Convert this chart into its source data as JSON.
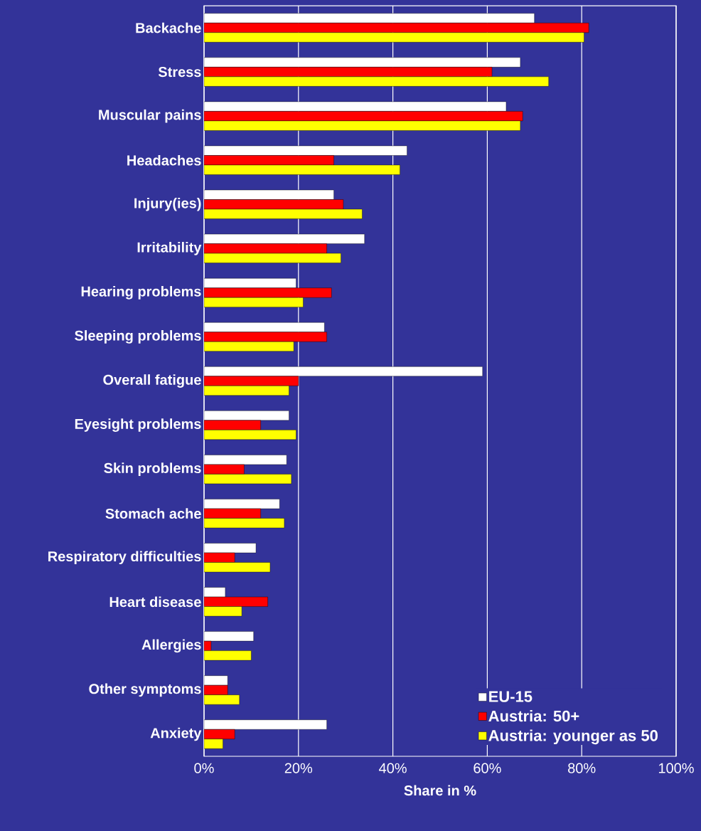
{
  "chart_data": {
    "type": "bar",
    "orientation": "horizontal",
    "xlabel": "Share in %",
    "categories": [
      "Backache",
      "Stress",
      "Muscular pains",
      "Headaches",
      "Injury(ies)",
      "Irritability",
      "Hearing problems",
      "Sleeping problems",
      "Overall fatigue",
      "Eyesight problems",
      "Skin problems",
      "Stomach ache",
      "Respiratory difficulties",
      "Heart disease",
      "Allergies",
      "Other symptoms",
      "Anxiety"
    ],
    "series": [
      {
        "name": "EU-15",
        "color": "#ffffff",
        "values": [
          70,
          67,
          64,
          43,
          27.5,
          34,
          19.5,
          25.5,
          59,
          18,
          17.5,
          16,
          11,
          4.5,
          10.5,
          5,
          26
        ]
      },
      {
        "name": "Austria: 50+",
        "color": "#ff0000",
        "values": [
          81.5,
          61,
          67.5,
          27.5,
          29.5,
          26,
          27,
          26,
          20,
          12,
          8.5,
          12,
          6.5,
          13.5,
          1.5,
          5,
          6.5
        ]
      },
      {
        "name": "Austria: younger as 50",
        "color": "#ffff00",
        "values": [
          80.5,
          73,
          67,
          41.5,
          33.5,
          29,
          21,
          19,
          18,
          19.5,
          18.5,
          17,
          14,
          8,
          10,
          7.5,
          4
        ]
      }
    ],
    "xlim": [
      0,
      100
    ],
    "xticks": [
      {
        "value": 0,
        "label": "0%"
      },
      {
        "value": 20,
        "label": "20%"
      },
      {
        "value": 40,
        "label": "40%"
      },
      {
        "value": 60,
        "label": "60%"
      },
      {
        "value": 80,
        "label": "80%"
      },
      {
        "value": 100,
        "label": "100%"
      }
    ],
    "grid": "x",
    "legend": "bottom right"
  }
}
